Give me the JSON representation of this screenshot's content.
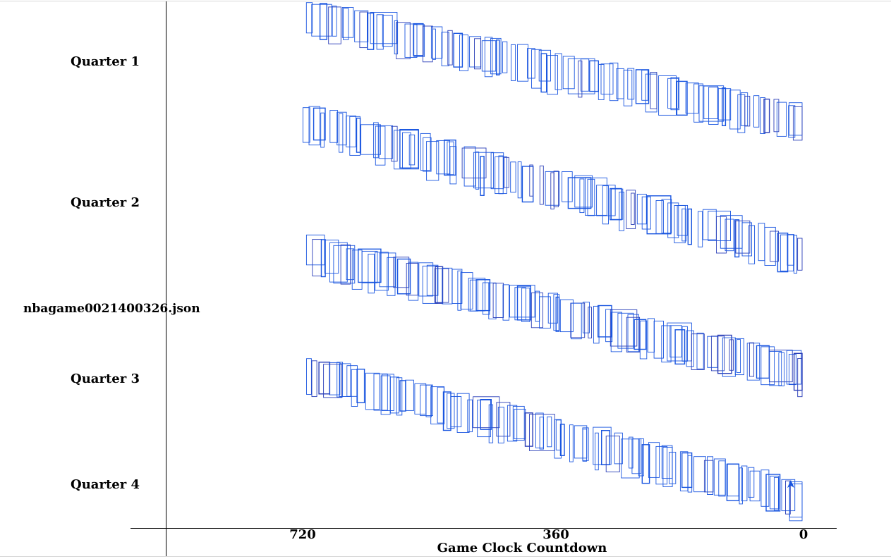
{
  "chart_data": {
    "type": "scatter",
    "title": "",
    "file_label": "nbagame0021400326.json",
    "xlabel": "Game Clock Countdown",
    "ylabel": "",
    "x_ticks": [
      720,
      360,
      0
    ],
    "xlim": [
      720,
      0
    ],
    "grid": false,
    "colors": {
      "box_stroke": "#1a56e0",
      "box_stroke_alt": "#2b3fb8",
      "axis": "#000000"
    },
    "series": [
      {
        "label": "Quarter 1",
        "start_clock": 712,
        "end_clock": 6,
        "count": 78,
        "seed": 11
      },
      {
        "label": "Quarter 2",
        "start_clock": 717,
        "end_clock": 8,
        "count": 84,
        "seed": 23
      },
      {
        "label": "Quarter 3",
        "start_clock": 712,
        "end_clock": 4,
        "count": 88,
        "seed": 37
      },
      {
        "label": "Quarter 4",
        "start_clock": 712,
        "end_clock": 6,
        "count": 86,
        "seed": 53
      }
    ]
  }
}
